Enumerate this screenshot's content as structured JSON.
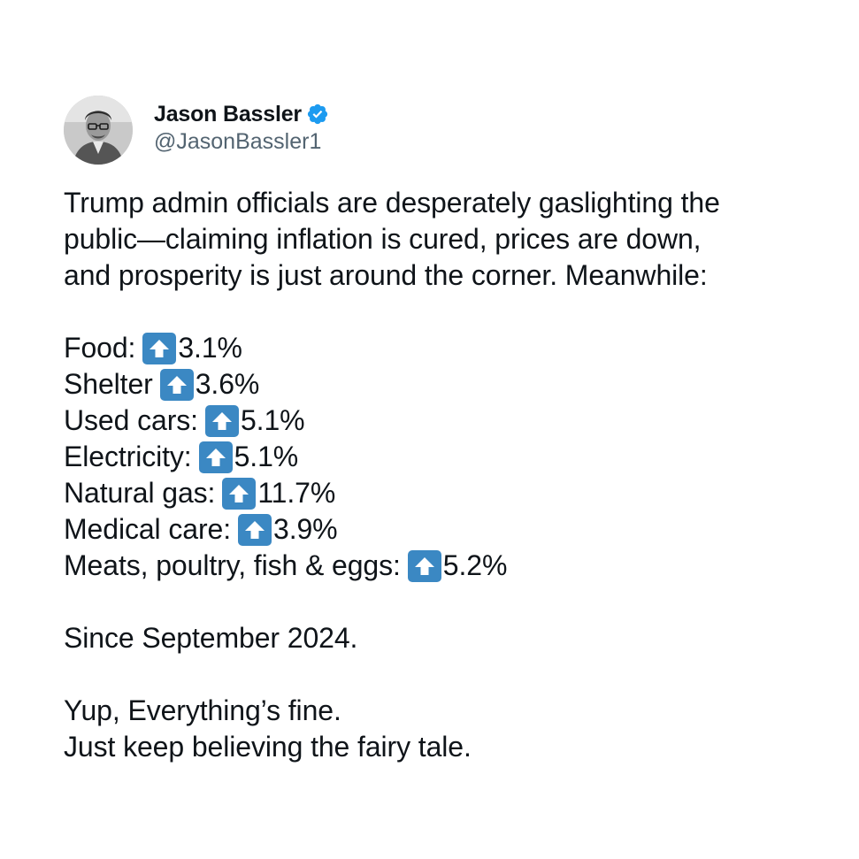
{
  "author": {
    "display_name": "Jason Bassler",
    "handle": "@JasonBassler1",
    "verified": true,
    "avatar_icon": "profile-photo",
    "verified_icon": "verified-badge-icon",
    "accent_color": "#1d9bf0"
  },
  "tweet": {
    "intro": "Trump admin officials are desperately gaslighting the public—claiming inflation is cured, prices are down, and prosperity is just around the corner. Meanwhile:",
    "intro_lines": [
      "Trump admin officials are desperately gaslighting the",
      "public—claiming inflation is cured, prices are down,",
      "and prosperity is just around the corner. Meanwhile:"
    ],
    "stats": [
      {
        "label": "Food:",
        "change": "3.1%",
        "icon": "up-arrow-button-icon"
      },
      {
        "label": "Shelter",
        "change": "3.6%",
        "icon": "up-arrow-button-icon"
      },
      {
        "label": "Used cars:",
        "change": "5.1%",
        "icon": "up-arrow-button-icon"
      },
      {
        "label": "Electricity:",
        "change": "5.1%",
        "icon": "up-arrow-button-icon"
      },
      {
        "label": "Natural gas:",
        "change": "11.7%",
        "icon": "up-arrow-button-icon"
      },
      {
        "label": "Medical care:",
        "change": "3.9%",
        "icon": "up-arrow-button-icon"
      },
      {
        "label": "Meats, poultry, fish & eggs:",
        "change": "5.2%",
        "icon": "up-arrow-button-icon"
      }
    ],
    "since": "Since September 2024.",
    "closing_lines": [
      "Yup, Everything’s fine.",
      "Just keep believing the fairy tale."
    ],
    "arrow_color": "#3b88c3"
  }
}
